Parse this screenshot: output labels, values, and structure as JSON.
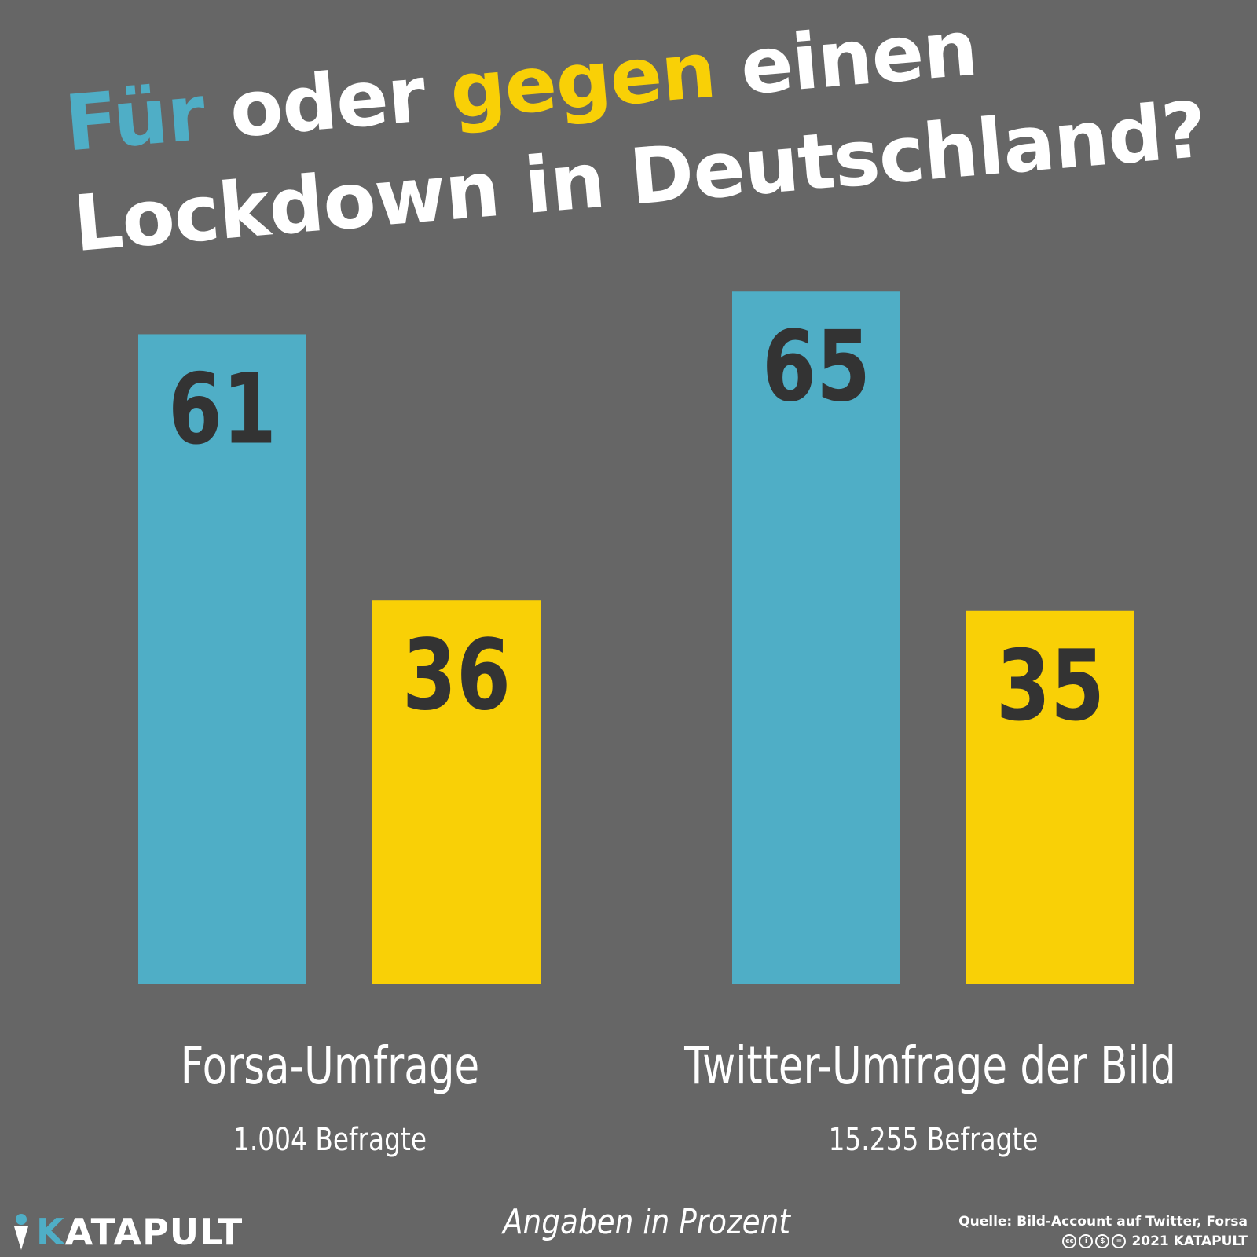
{
  "title": {
    "word_for": "Für",
    "word_or": "oder",
    "word_against": "gegen",
    "word_a": "einen",
    "line2": "Lockdown in Deutschland?"
  },
  "colors": {
    "background": "#666666",
    "for": "#4faec6",
    "against": "#f9d006",
    "value_text": "#333333",
    "text": "#ffffff"
  },
  "chart_data": {
    "type": "bar",
    "categories": [
      "Forsa-Umfrage",
      "Twitter-Umfrage der Bild"
    ],
    "subtitles": [
      "1.004 Befragte",
      "15.255 Befragte"
    ],
    "series": [
      {
        "name": "Für",
        "color": "#4faec6",
        "values": [
          61,
          65
        ]
      },
      {
        "name": "gegen",
        "color": "#f9d006",
        "values": [
          36,
          35
        ]
      }
    ],
    "unit_note": "Angaben in Prozent",
    "ylim": [
      0,
      100
    ],
    "grid": false,
    "data_labels": true
  },
  "footer": {
    "logo_text_k": "K",
    "logo_text_rest": "ATAPULT",
    "source": "Quelle: Bild-Account auf Twitter, Forsa",
    "license_icons": [
      "cc-icon",
      "by-icon",
      "nc-icon",
      "nd-icon"
    ],
    "license_text": "2021 KATAPULT"
  }
}
